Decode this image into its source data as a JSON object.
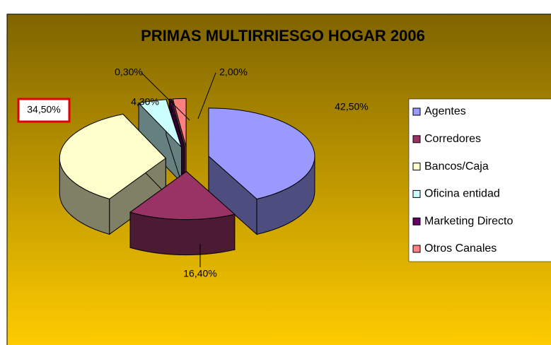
{
  "chart_data": {
    "type": "pie3d",
    "title": "PRIMAS MULTIRRIESGO HOGAR 2006",
    "categories": [
      "Agentes",
      "Corredores",
      "Bancos/Caja",
      "Oficina entidad",
      "Marketing Directo",
      "Otros Canales"
    ],
    "values": [
      42.5,
      16.4,
      34.5,
      4.3,
      0.3,
      2.0
    ],
    "value_labels": [
      "42,50%",
      "16,40%",
      "34,50%",
      "4,30%",
      "0,30%",
      "2,00%"
    ],
    "colors": [
      "#9999ff",
      "#993366",
      "#ffffcc",
      "#ccffff",
      "#660066",
      "#ff8080"
    ],
    "legend": "right"
  }
}
